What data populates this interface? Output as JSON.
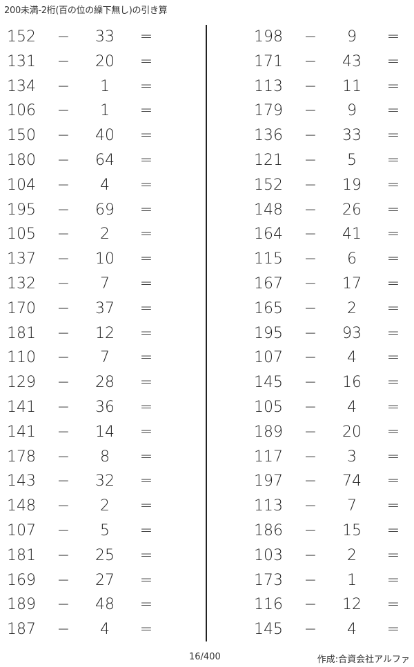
{
  "title": "200未満-2桁(百の位の繰下無し)の引き算",
  "operator": "−",
  "equals": "=",
  "left_problems": [
    {
      "a": "152",
      "b": "33"
    },
    {
      "a": "131",
      "b": "20"
    },
    {
      "a": "134",
      "b": "1"
    },
    {
      "a": "106",
      "b": "1"
    },
    {
      "a": "150",
      "b": "40"
    },
    {
      "a": "180",
      "b": "64"
    },
    {
      "a": "104",
      "b": "4"
    },
    {
      "a": "195",
      "b": "69"
    },
    {
      "a": "105",
      "b": "2"
    },
    {
      "a": "137",
      "b": "10"
    },
    {
      "a": "132",
      "b": "7"
    },
    {
      "a": "170",
      "b": "37"
    },
    {
      "a": "181",
      "b": "12"
    },
    {
      "a": "110",
      "b": "7"
    },
    {
      "a": "129",
      "b": "28"
    },
    {
      "a": "141",
      "b": "36"
    },
    {
      "a": "141",
      "b": "14"
    },
    {
      "a": "178",
      "b": "8"
    },
    {
      "a": "143",
      "b": "32"
    },
    {
      "a": "148",
      "b": "2"
    },
    {
      "a": "107",
      "b": "5"
    },
    {
      "a": "181",
      "b": "25"
    },
    {
      "a": "169",
      "b": "27"
    },
    {
      "a": "189",
      "b": "48"
    },
    {
      "a": "187",
      "b": "4"
    }
  ],
  "right_problems": [
    {
      "a": "198",
      "b": "9"
    },
    {
      "a": "171",
      "b": "43"
    },
    {
      "a": "113",
      "b": "11"
    },
    {
      "a": "179",
      "b": "9"
    },
    {
      "a": "136",
      "b": "33"
    },
    {
      "a": "121",
      "b": "5"
    },
    {
      "a": "152",
      "b": "19"
    },
    {
      "a": "148",
      "b": "26"
    },
    {
      "a": "164",
      "b": "41"
    },
    {
      "a": "115",
      "b": "6"
    },
    {
      "a": "167",
      "b": "17"
    },
    {
      "a": "165",
      "b": "2"
    },
    {
      "a": "195",
      "b": "93"
    },
    {
      "a": "107",
      "b": "4"
    },
    {
      "a": "145",
      "b": "16"
    },
    {
      "a": "105",
      "b": "4"
    },
    {
      "a": "189",
      "b": "20"
    },
    {
      "a": "117",
      "b": "3"
    },
    {
      "a": "197",
      "b": "74"
    },
    {
      "a": "113",
      "b": "7"
    },
    {
      "a": "186",
      "b": "15"
    },
    {
      "a": "103",
      "b": "2"
    },
    {
      "a": "173",
      "b": "1"
    },
    {
      "a": "116",
      "b": "12"
    },
    {
      "a": "145",
      "b": "4"
    }
  ],
  "footer": {
    "page": "16/400",
    "credit": "作成:合資会社アルファ"
  }
}
